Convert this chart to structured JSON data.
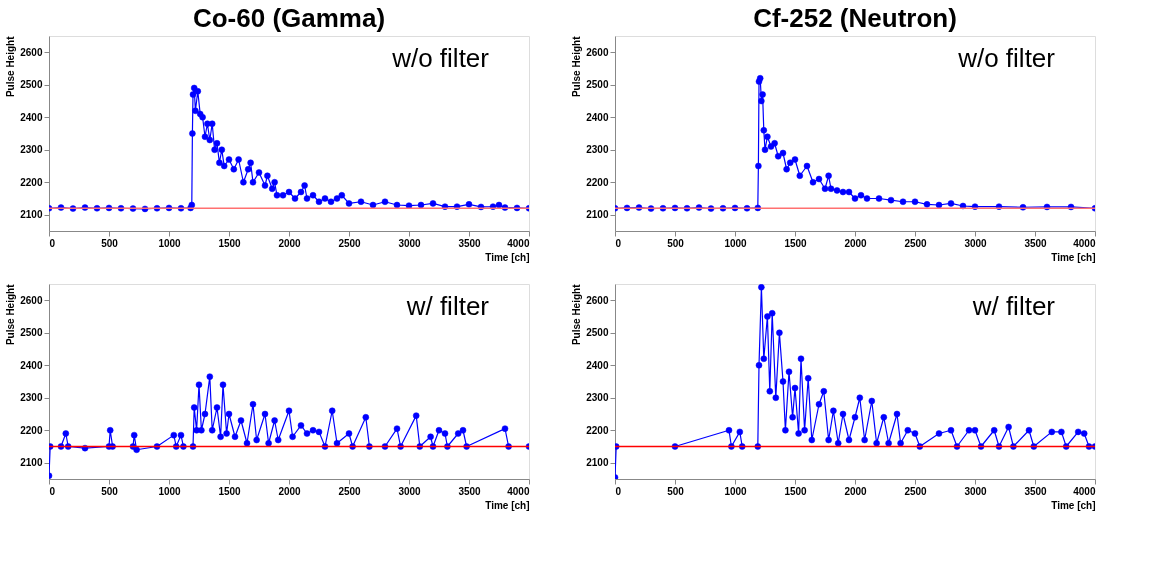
{
  "chart_data": [
    {
      "type": "line",
      "title": "Co-60 (Gamma)",
      "xlabel": "Time [ch]",
      "ylabel": "Pulse Height",
      "annotations": [
        "w/o filter"
      ],
      "marker": "circle",
      "line_style": "solid",
      "grid": false,
      "xlim": [
        0,
        4000
      ],
      "xticks": [
        0,
        500,
        1000,
        1500,
        2000,
        2500,
        3000,
        3500,
        4000
      ],
      "ylim": [
        2050,
        2650
      ],
      "yticks": [
        2100,
        2200,
        2300,
        2400,
        2500,
        2600
      ],
      "ref_lines": [
        {
          "axis": "y",
          "value": 2120,
          "color": "#ff7070"
        }
      ],
      "series": [
        {
          "color": "#0000ff",
          "x": [
            0,
            100,
            200,
            300,
            400,
            500,
            600,
            700,
            800,
            900,
            1000,
            1100,
            1180,
            1190,
            1195,
            1200,
            1210,
            1220,
            1240,
            1260,
            1280,
            1300,
            1320,
            1340,
            1360,
            1380,
            1400,
            1420,
            1440,
            1460,
            1500,
            1540,
            1580,
            1620,
            1660,
            1680,
            1700,
            1750,
            1800,
            1820,
            1860,
            1880,
            1900,
            1950,
            2000,
            2050,
            2100,
            2130,
            2150,
            2200,
            2250,
            2300,
            2350,
            2400,
            2440,
            2500,
            2600,
            2700,
            2800,
            2900,
            3000,
            3100,
            3200,
            3300,
            3400,
            3500,
            3600,
            3700,
            3750,
            3800,
            3900,
            4000
          ],
          "values": [
            2120,
            2122,
            2119,
            2122,
            2120,
            2121,
            2120,
            2119,
            2118,
            2120,
            2121,
            2120,
            2121,
            2130,
            2350,
            2470,
            2490,
            2420,
            2480,
            2410,
            2400,
            2340,
            2380,
            2330,
            2380,
            2300,
            2320,
            2260,
            2300,
            2250,
            2270,
            2240,
            2270,
            2200,
            2240,
            2260,
            2200,
            2230,
            2190,
            2220,
            2180,
            2200,
            2160,
            2160,
            2170,
            2150,
            2170,
            2190,
            2150,
            2160,
            2140,
            2150,
            2140,
            2150,
            2160,
            2135,
            2140,
            2130,
            2140,
            2130,
            2128,
            2130,
            2135,
            2125,
            2125,
            2132,
            2124,
            2125,
            2130,
            2122,
            2121,
            2120
          ]
        }
      ]
    },
    {
      "type": "line",
      "title": "Cf-252 (Neutron)",
      "xlabel": "Time [ch]",
      "ylabel": "Pulse Height",
      "annotations": [
        "w/o filter"
      ],
      "marker": "circle",
      "line_style": "solid",
      "grid": false,
      "xlim": [
        0,
        4000
      ],
      "xticks": [
        0,
        500,
        1000,
        1500,
        2000,
        2500,
        3000,
        3500,
        4000
      ],
      "ylim": [
        2050,
        2650
      ],
      "yticks": [
        2100,
        2200,
        2300,
        2400,
        2500,
        2600
      ],
      "ref_lines": [
        {
          "axis": "y",
          "value": 2120,
          "color": "#ff7070"
        }
      ],
      "series": [
        {
          "color": "#0000ff",
          "x": [
            0,
            100,
            200,
            300,
            400,
            500,
            600,
            700,
            800,
            900,
            1000,
            1100,
            1190,
            1195,
            1200,
            1210,
            1220,
            1230,
            1240,
            1250,
            1270,
            1300,
            1330,
            1360,
            1400,
            1430,
            1460,
            1500,
            1540,
            1600,
            1650,
            1700,
            1750,
            1780,
            1800,
            1850,
            1900,
            1950,
            2000,
            2050,
            2100,
            2200,
            2300,
            2400,
            2500,
            2600,
            2700,
            2800,
            2900,
            3000,
            3200,
            3400,
            3600,
            3800,
            4000
          ],
          "values": [
            2120,
            2121,
            2122,
            2119,
            2120,
            2121,
            2120,
            2122,
            2119,
            2120,
            2121,
            2120,
            2121,
            2250,
            2510,
            2520,
            2450,
            2470,
            2360,
            2300,
            2340,
            2310,
            2320,
            2280,
            2290,
            2240,
            2260,
            2270,
            2220,
            2250,
            2200,
            2210,
            2180,
            2220,
            2180,
            2175,
            2170,
            2170,
            2150,
            2160,
            2150,
            2150,
            2145,
            2140,
            2140,
            2132,
            2130,
            2135,
            2127,
            2125,
            2125,
            2123,
            2124,
            2124,
            2120
          ]
        }
      ]
    },
    {
      "type": "line",
      "xlabel": "Time [ch]",
      "ylabel": "Pulse Height",
      "annotations": [
        "w/ filter"
      ],
      "marker": "circle",
      "line_style": "solid",
      "grid": false,
      "xlim": [
        0,
        4000
      ],
      "xticks": [
        0,
        500,
        1000,
        1500,
        2000,
        2500,
        3000,
        3500,
        4000
      ],
      "ylim": [
        2050,
        2650
      ],
      "yticks": [
        2100,
        2200,
        2300,
        2400,
        2500,
        2600
      ],
      "ref_lines": [
        {
          "axis": "y",
          "value": 2150,
          "color": "#ff0000"
        }
      ],
      "series": [
        {
          "color": "#0000ff",
          "x": [
            0,
            10,
            100,
            140,
            160,
            300,
            500,
            510,
            530,
            700,
            710,
            730,
            900,
            1040,
            1060,
            1100,
            1120,
            1200,
            1210,
            1230,
            1250,
            1270,
            1300,
            1340,
            1360,
            1400,
            1430,
            1450,
            1480,
            1500,
            1550,
            1600,
            1650,
            1700,
            1730,
            1800,
            1830,
            1880,
            1910,
            2000,
            2030,
            2100,
            2150,
            2200,
            2250,
            2300,
            2360,
            2400,
            2500,
            2530,
            2640,
            2670,
            2800,
            2900,
            2930,
            3060,
            3090,
            3180,
            3200,
            3250,
            3300,
            3320,
            3410,
            3450,
            3480,
            3800,
            3830,
            4000
          ],
          "values": [
            2060,
            2150,
            2150,
            2190,
            2150,
            2145,
            2150,
            2200,
            2150,
            2150,
            2185,
            2140,
            2150,
            2185,
            2150,
            2185,
            2150,
            2150,
            2270,
            2200,
            2340,
            2200,
            2250,
            2365,
            2200,
            2270,
            2180,
            2340,
            2190,
            2250,
            2180,
            2230,
            2160,
            2280,
            2170,
            2250,
            2160,
            2230,
            2170,
            2260,
            2180,
            2215,
            2190,
            2200,
            2195,
            2150,
            2260,
            2160,
            2190,
            2150,
            2240,
            2150,
            2150,
            2205,
            2150,
            2245,
            2150,
            2180,
            2150,
            2200,
            2190,
            2150,
            2190,
            2200,
            2150,
            2205,
            2150,
            2150
          ]
        }
      ]
    },
    {
      "type": "line",
      "xlabel": "Time [ch]",
      "ylabel": "Pulse Height",
      "annotations": [
        "w/ filter"
      ],
      "marker": "circle",
      "line_style": "solid",
      "grid": false,
      "xlim": [
        0,
        4000
      ],
      "xticks": [
        0,
        500,
        1000,
        1500,
        2000,
        2500,
        3000,
        3500,
        4000
      ],
      "ylim": [
        2050,
        2650
      ],
      "yticks": [
        2100,
        2200,
        2300,
        2400,
        2500,
        2600
      ],
      "ref_lines": [
        {
          "axis": "y",
          "value": 2150,
          "color": "#ff0000"
        }
      ],
      "series": [
        {
          "color": "#0000ff",
          "x": [
            0,
            10,
            500,
            950,
            970,
            1040,
            1060,
            1190,
            1200,
            1220,
            1240,
            1270,
            1290,
            1310,
            1340,
            1370,
            1400,
            1420,
            1450,
            1480,
            1500,
            1530,
            1550,
            1580,
            1610,
            1640,
            1700,
            1740,
            1780,
            1820,
            1860,
            1900,
            1950,
            2000,
            2040,
            2080,
            2140,
            2180,
            2240,
            2280,
            2350,
            2380,
            2440,
            2500,
            2540,
            2700,
            2800,
            2850,
            2950,
            3000,
            3050,
            3160,
            3200,
            3280,
            3320,
            3450,
            3490,
            3640,
            3720,
            3760,
            3860,
            3910,
            3950,
            4000
          ],
          "values": [
            2055,
            2150,
            2150,
            2200,
            2150,
            2195,
            2150,
            2150,
            2400,
            2640,
            2420,
            2550,
            2320,
            2560,
            2300,
            2500,
            2350,
            2200,
            2380,
            2240,
            2330,
            2190,
            2420,
            2200,
            2360,
            2170,
            2280,
            2320,
            2170,
            2260,
            2160,
            2250,
            2170,
            2240,
            2300,
            2170,
            2290,
            2160,
            2240,
            2160,
            2250,
            2160,
            2200,
            2190,
            2150,
            2190,
            2200,
            2150,
            2200,
            2200,
            2150,
            2200,
            2150,
            2210,
            2150,
            2200,
            2150,
            2195,
            2195,
            2150,
            2195,
            2190,
            2150,
            2150
          ]
        }
      ]
    }
  ]
}
